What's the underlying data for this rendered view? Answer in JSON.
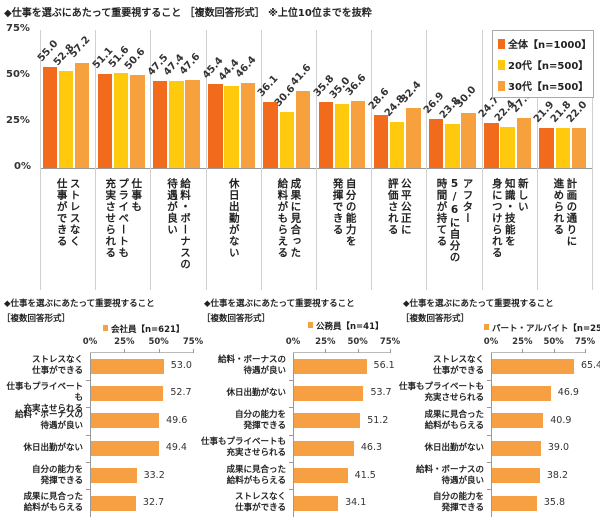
{
  "colors": {
    "all": "#F26B1D",
    "twenties": "#FFC90E",
    "thirties": "#F7A03E",
    "bottom_bar": "#F7A043"
  },
  "chart_data": [
    {
      "type": "bar",
      "title": "◆仕事を選ぶにあたって重要視すること ［複数回答形式］ ※上位10位までを抜粋",
      "categories": [
        "ストレスなく\n仕事ができる",
        "仕事も\nプライベートも\n充実させられる",
        "給料・ボーナスの\n待遇が良い",
        "休日出勤がない",
        "成果に見合った\n給料がもらえる",
        "自分の能力を\n発揮できる",
        "公平公正に\n評価される",
        "アフター\n5/6に自分の\n時間が持てる",
        "新しい\n知識・技能を\n身につけられる",
        "計画の通りに\n進められる"
      ],
      "series": [
        {
          "name": "全体【n=1000】",
          "values": [
            55.0,
            51.1,
            47.5,
            45.4,
            36.1,
            35.8,
            28.6,
            26.9,
            24.7,
            21.9
          ]
        },
        {
          "name": "20代【n=500】",
          "values": [
            52.8,
            51.6,
            47.4,
            44.4,
            30.6,
            35.0,
            24.8,
            23.8,
            22.4,
            21.8
          ]
        },
        {
          "name": "30代【n=500】",
          "values": [
            57.2,
            50.6,
            47.6,
            46.4,
            41.6,
            36.6,
            32.4,
            30.0,
            27.0,
            22.0
          ]
        }
      ],
      "yticks": [
        "0%",
        "25%",
        "50%",
        "75%"
      ],
      "ylim": [
        0,
        75
      ],
      "legend": "top-right"
    },
    {
      "type": "bar",
      "orientation": "horizontal",
      "title": "◆仕事を選ぶにあたって重要視すること",
      "subtitle": "［複数回答形式］",
      "series_name": "会社員【n=621】",
      "categories": [
        "ストレスなく\n仕事ができる",
        "仕事もプライベートも\n充実させられる",
        "給料・ボーナスの\n待遇が良い",
        "休日出勤がない",
        "自分の能力を\n発揮できる",
        "成果に見合った\n給料がもらえる"
      ],
      "values": [
        53.0,
        52.7,
        49.6,
        49.4,
        33.2,
        32.7
      ],
      "xticks": [
        "0%",
        "25%",
        "50%",
        "75%"
      ],
      "xlim": [
        0,
        75
      ]
    },
    {
      "type": "bar",
      "orientation": "horizontal",
      "title": "◆仕事を選ぶにあたって重要視すること",
      "subtitle": "［複数回答形式］",
      "series_name": "公務員【n=41】",
      "categories": [
        "給料・ボーナスの\n待遇が良い",
        "休日出勤がない",
        "自分の能力を\n発揮できる",
        "仕事もプライベートも\n充実させられる",
        "成果に見合った\n給料がもらえる",
        "ストレスなく\n仕事ができる"
      ],
      "values": [
        56.1,
        53.7,
        51.2,
        46.3,
        41.5,
        34.1
      ],
      "xticks": [
        "0%",
        "25%",
        "50%",
        "75%"
      ],
      "xlim": [
        0,
        75
      ]
    },
    {
      "type": "bar",
      "orientation": "horizontal",
      "title": "◆仕事を選ぶにあたって重要視すること",
      "subtitle": "［複数回答形式］",
      "series_name": "パート・アルバイト【n=254】",
      "categories": [
        "ストレスなく\n仕事ができる",
        "仕事もプライベートも\n充実させられる",
        "成果に見合った\n給料がもらえる",
        "休日出勤がない",
        "給料・ボーナスの\n待遇が良い",
        "自分の能力を\n発揮できる"
      ],
      "values": [
        65.4,
        46.9,
        40.9,
        39.0,
        38.2,
        35.8
      ],
      "xticks": [
        "0%",
        "25%",
        "50%",
        "75%"
      ],
      "xlim": [
        0,
        75
      ]
    }
  ]
}
